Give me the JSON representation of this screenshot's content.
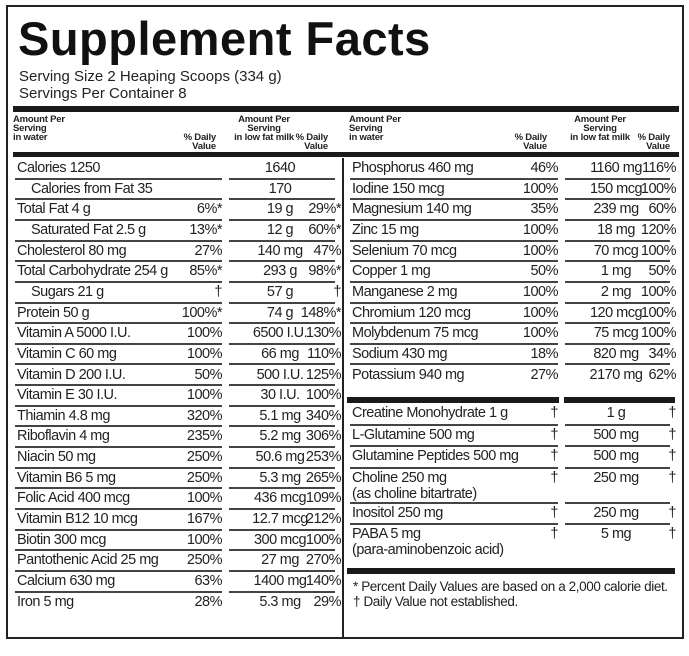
{
  "title": "Supplement Facts",
  "serving_size": "Serving Size 2 Heaping Scoops (334 g)",
  "servings_per_container": "Servings Per Container 8",
  "headers": {
    "amount_water": [
      "Amount Per",
      "Serving",
      "in water"
    ],
    "dv": [
      "% Daily",
      "Value"
    ],
    "amount_milk": [
      "Amount Per",
      "Serving",
      "in low fat milk"
    ]
  },
  "left_rows": [
    {
      "name": "Calories  1250",
      "dv1": "",
      "amt2": "1640",
      "dv2": "",
      "indent": false
    },
    {
      "name": "Calories from Fat  35",
      "dv1": "",
      "amt2": "170",
      "dv2": "",
      "indent": true
    },
    {
      "name": "Total Fat  4 g",
      "dv1": "6%*",
      "amt2": "19 g",
      "dv2": "29%*",
      "indent": false
    },
    {
      "name": "Saturated Fat  2.5 g",
      "dv1": "13%*",
      "amt2": "12 g",
      "dv2": "60%*",
      "indent": true
    },
    {
      "name": "Cholesterol  80 mg",
      "dv1": "27%",
      "amt2": "140 mg",
      "dv2": "47%",
      "indent": false
    },
    {
      "name": "Total Carbohydrate  254 g",
      "dv1": "85%*",
      "amt2": "293 g",
      "dv2": "98%*",
      "indent": false
    },
    {
      "name": "Sugars  21 g",
      "dv1": "†",
      "amt2": "57 g",
      "dv2": "†",
      "indent": true
    },
    {
      "name": "Protein  50 g",
      "dv1": "100%*",
      "amt2": "74 g",
      "dv2": "148%*",
      "indent": false
    },
    {
      "name": "Vitamin A  5000 I.U.",
      "dv1": "100%",
      "amt2": "6500 I.U.",
      "dv2": "130%",
      "indent": false
    },
    {
      "name": "Vitamin C  60 mg",
      "dv1": "100%",
      "amt2": "66 mg",
      "dv2": "110%",
      "indent": false
    },
    {
      "name": "Vitamin D  200 I.U.",
      "dv1": "50%",
      "amt2": "500 I.U.",
      "dv2": "125%",
      "indent": false
    },
    {
      "name": "Vitamin E  30 I.U.",
      "dv1": "100%",
      "amt2": "30 I.U.",
      "dv2": "100%",
      "indent": false
    },
    {
      "name": "Thiamin  4.8 mg",
      "dv1": "320%",
      "amt2": "5.1 mg",
      "dv2": "340%",
      "indent": false
    },
    {
      "name": "Riboflavin  4 mg",
      "dv1": "235%",
      "amt2": "5.2 mg",
      "dv2": "306%",
      "indent": false
    },
    {
      "name": "Niacin  50 mg",
      "dv1": "250%",
      "amt2": "50.6 mg",
      "dv2": "253%",
      "indent": false
    },
    {
      "name": "Vitamin B6  5 mg",
      "dv1": "250%",
      "amt2": "5.3 mg",
      "dv2": "265%",
      "indent": false
    },
    {
      "name": "Folic Acid  400 mcg",
      "dv1": "100%",
      "amt2": "436 mcg",
      "dv2": "109%",
      "indent": false
    },
    {
      "name": "Vitamin B12  10 mcg",
      "dv1": "167%",
      "amt2": "12.7 mcg",
      "dv2": "212%",
      "indent": false
    },
    {
      "name": "Biotin  300 mcg",
      "dv1": "100%",
      "amt2": "300 mcg",
      "dv2": "100%",
      "indent": false
    },
    {
      "name": "Pantothenic Acid  25 mg",
      "dv1": "250%",
      "amt2": "27 mg",
      "dv2": "270%",
      "indent": false
    },
    {
      "name": "Calcium  630 mg",
      "dv1": "63%",
      "amt2": "1400 mg",
      "dv2": "140%",
      "indent": false
    },
    {
      "name": "Iron  5 mg",
      "dv1": "28%",
      "amt2": "5.3 mg",
      "dv2": "29%",
      "indent": false
    }
  ],
  "right_rows": [
    {
      "name": "Phosphorus  460 mg",
      "dv1": "46%",
      "amt2": "1160 mg",
      "dv2": "116%"
    },
    {
      "name": "Iodine  150 mcg",
      "dv1": "100%",
      "amt2": "150 mcg",
      "dv2": "100%"
    },
    {
      "name": "Magnesium  140 mg",
      "dv1": "35%",
      "amt2": "239 mg",
      "dv2": "60%"
    },
    {
      "name": "Zinc  15 mg",
      "dv1": "100%",
      "amt2": "18 mg",
      "dv2": "120%"
    },
    {
      "name": "Selenium  70 mcg",
      "dv1": "100%",
      "amt2": "70 mcg",
      "dv2": "100%"
    },
    {
      "name": "Copper  1 mg",
      "dv1": "50%",
      "amt2": "1 mg",
      "dv2": "50%"
    },
    {
      "name": "Manganese  2 mg",
      "dv1": "100%",
      "amt2": "2 mg",
      "dv2": "100%"
    },
    {
      "name": "Chromium  120 mcg",
      "dv1": "100%",
      "amt2": "120 mcg",
      "dv2": "100%"
    },
    {
      "name": "Molybdenum  75 mcg",
      "dv1": "100%",
      "amt2": "75 mcg",
      "dv2": "100%"
    },
    {
      "name": "Sodium  430 mg",
      "dv1": "18%",
      "amt2": "820 mg",
      "dv2": "34%"
    },
    {
      "name": "Potassium  940 mg",
      "dv1": "27%",
      "amt2": "2170 mg",
      "dv2": "62%"
    }
  ],
  "other_rows": [
    {
      "name": "Creatine Monohydrate  1 g",
      "sub": "",
      "dv1": "†",
      "amt2": "1 g",
      "dv2": "†"
    },
    {
      "name": "L-Glutamine  500 mg",
      "sub": "",
      "dv1": "†",
      "amt2": "500 mg",
      "dv2": "†"
    },
    {
      "name": "Glutamine Peptides  500 mg",
      "sub": "",
      "dv1": "†",
      "amt2": "500 mg",
      "dv2": "†"
    },
    {
      "name": "Choline  250 mg",
      "sub": "(as choline bitartrate)",
      "dv1": "†",
      "amt2": "250 mg",
      "dv2": "†"
    },
    {
      "name": "Inositol  250 mg",
      "sub": "",
      "dv1": "†",
      "amt2": "250 mg",
      "dv2": "†"
    },
    {
      "name": "PABA  5 mg",
      "sub": "(para-aminobenzoic acid)",
      "dv1": "†",
      "amt2": "5 mg",
      "dv2": "†"
    }
  ],
  "footnotes": [
    "* Percent Daily Values are based on a 2,000 calorie diet.",
    "† Daily Value not established."
  ]
}
